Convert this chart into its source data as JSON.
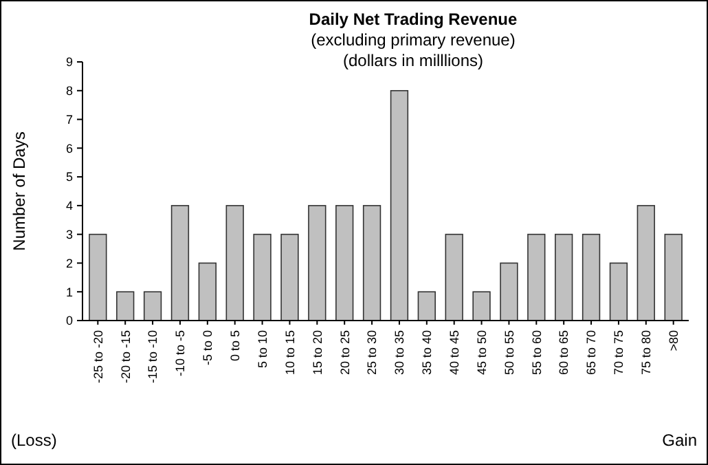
{
  "chart_data": {
    "type": "bar",
    "title": "Daily Net Trading Revenue",
    "subtitle": "(excluding primary revenue)\n(dollars in milllions)",
    "ylabel": "Number of Days",
    "categories": [
      "-25 to -20",
      "-20 to -15",
      "-15 to -10",
      "-10 to -5",
      "-5 to 0",
      "0 to 5",
      "5 to 10",
      "10 to 15",
      "15 to 20",
      "20 to 25",
      "25 to 30",
      "30 to 35",
      "35 to 40",
      "40 to 45",
      "45 to 50",
      "50 to 55",
      "55 to 60",
      "60 to 65",
      "65 to 70",
      "70 to 75",
      "75 to 80",
      ">80"
    ],
    "values": [
      3,
      1,
      1,
      4,
      2,
      4,
      3,
      3,
      4,
      4,
      4,
      8,
      1,
      3,
      1,
      2,
      3,
      3,
      3,
      2,
      4,
      3
    ],
    "color": "#c0c0c0",
    "ylim": [
      0,
      9
    ],
    "yticks": [
      0,
      1,
      2,
      3,
      4,
      5,
      6,
      7,
      8,
      9
    ],
    "grid": false,
    "annotations": [
      "(Loss)",
      "Gain"
    ]
  }
}
